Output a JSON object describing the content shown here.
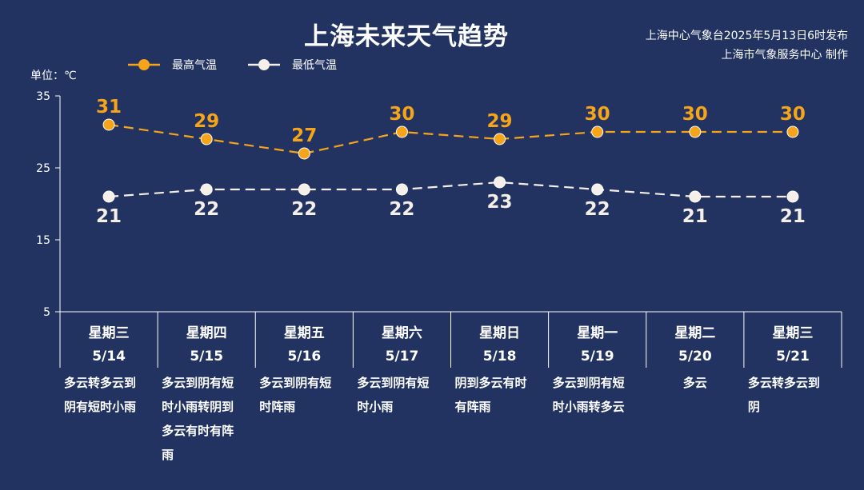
{
  "title": "上海未来天气趋势",
  "source": {
    "line1": "上海中心气象台2025年5月13日6时发布",
    "line2": "上海市气象服务中心 制作"
  },
  "colors": {
    "background": "#223361",
    "high": "#f6a51b",
    "low": "#f4efe8"
  },
  "chart_data": {
    "type": "line",
    "ylabel": "单位：℃",
    "ylim": [
      5,
      35
    ],
    "yticks": [
      5,
      15,
      25,
      35
    ],
    "legend_position": "top-left",
    "categories": [
      "5/14",
      "5/15",
      "5/16",
      "5/17",
      "5/18",
      "5/19",
      "5/20",
      "5/21"
    ],
    "series": [
      {
        "name": "最高气温",
        "values": [
          31,
          29,
          27,
          30,
          29,
          30,
          30,
          30
        ]
      },
      {
        "name": "最低气温",
        "values": [
          21,
          22,
          22,
          22,
          23,
          22,
          21,
          21
        ]
      }
    ],
    "days": [
      {
        "weekday": "星期三",
        "date": "5/14",
        "weather": [
          "多云转多云到",
          "阴有短时小雨"
        ],
        "align": "left"
      },
      {
        "weekday": "星期四",
        "date": "5/15",
        "weather": [
          "多云到阴有短",
          "时小雨转阴到",
          "多云有时有阵",
          "雨"
        ],
        "align": "left"
      },
      {
        "weekday": "星期五",
        "date": "5/16",
        "weather": [
          "多云到阴有短",
          "时阵雨"
        ],
        "align": "left"
      },
      {
        "weekday": "星期六",
        "date": "5/17",
        "weather": [
          "多云到阴有短",
          "时小雨"
        ],
        "align": "left"
      },
      {
        "weekday": "星期日",
        "date": "5/18",
        "weather": [
          "阴到多云有时",
          "有阵雨"
        ],
        "align": "left"
      },
      {
        "weekday": "星期一",
        "date": "5/19",
        "weather": [
          "多云到阴有短",
          "时小雨转多云"
        ],
        "align": "left"
      },
      {
        "weekday": "星期二",
        "date": "5/20",
        "weather": [
          "多云"
        ],
        "align": "center"
      },
      {
        "weekday": "星期三",
        "date": "5/21",
        "weather": [
          "多云转多云到",
          "阴"
        ],
        "align": "left"
      }
    ]
  }
}
